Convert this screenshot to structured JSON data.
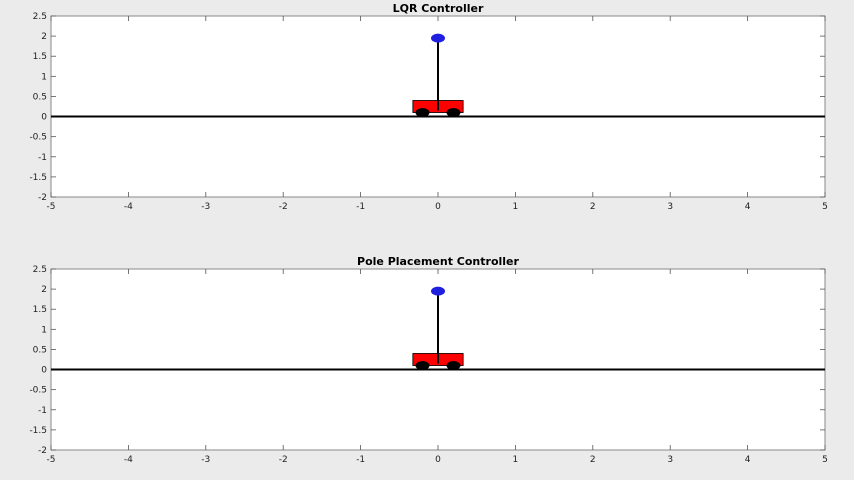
{
  "chart_data": [
    {
      "type": "scatter",
      "title": "LQR Controller",
      "xlabel": "",
      "ylabel": "",
      "xlim": [
        -5,
        5
      ],
      "ylim": [
        -2,
        2.5
      ],
      "xticks": [
        -5,
        -4,
        -3,
        -2,
        -1,
        0,
        1,
        2,
        3,
        4,
        5
      ],
      "yticks": [
        -2,
        -1.5,
        -1,
        -0.5,
        0,
        0.5,
        1,
        1.5,
        2,
        2.5
      ],
      "grid": false,
      "ground_y": 0,
      "cart": {
        "x": 0,
        "width": 0.65,
        "bottom": 0.1,
        "top": 0.4,
        "wheel_offset": 0.2,
        "wheel_y": 0.1,
        "pend_length": 1.55,
        "angle_deg": 0,
        "cart_color": "#ff0000",
        "wheel_color": "#000000",
        "rod_color": "#000000",
        "bob_color": "#1f1fe0"
      }
    },
    {
      "type": "scatter",
      "title": "Pole Placement Controller",
      "xlabel": "",
      "ylabel": "",
      "xlim": [
        -5,
        5
      ],
      "ylim": [
        -2,
        2.5
      ],
      "xticks": [
        -5,
        -4,
        -3,
        -2,
        -1,
        0,
        1,
        2,
        3,
        4,
        5
      ],
      "yticks": [
        -2,
        -1.5,
        -1,
        -0.5,
        0,
        0.5,
        1,
        1.5,
        2,
        2.5
      ],
      "grid": false,
      "ground_y": 0,
      "cart": {
        "x": 0,
        "width": 0.65,
        "bottom": 0.1,
        "top": 0.4,
        "wheel_offset": 0.2,
        "wheel_y": 0.1,
        "pend_length": 1.55,
        "angle_deg": 0,
        "cart_color": "#ff0000",
        "wheel_color": "#000000",
        "rod_color": "#000000",
        "bob_color": "#1f1fe0"
      }
    }
  ]
}
